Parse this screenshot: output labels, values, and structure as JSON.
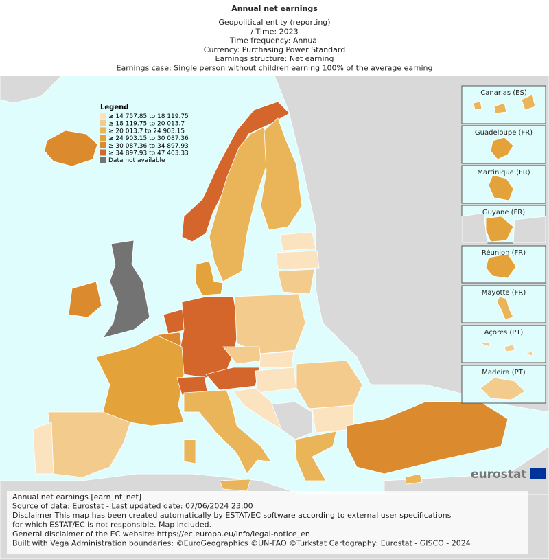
{
  "header": {
    "title": "Annual net earnings",
    "subtitle": [
      "Geopolitical entity (reporting)",
      "/ Time:  2023",
      "Time frequency:  Annual",
      "Currency:  Purchasing Power Standard",
      "Earnings structure:  Net earning",
      "Earnings case:  Single person without children earning 100% of the average earning"
    ]
  },
  "legend": {
    "title": "Legend",
    "items": [
      {
        "label": "≥ 14 757.85 to 18 119.75",
        "color": "#fce3c0"
      },
      {
        "label": "≥ 18 119.75 to 20 013.7",
        "color": "#f3cb8c"
      },
      {
        "label": "≥ 20 013.7 to 24 903.15",
        "color": "#eab458"
      },
      {
        "label": "≥ 24 903.15 to 30 087.36",
        "color": "#e4a23a"
      },
      {
        "label": "≥ 30 087.36 to 34 897.93",
        "color": "#dc8a2e"
      },
      {
        "label": "≥ 34 897.93 to 47 403.33",
        "color": "#d4662c"
      },
      {
        "label": "Data not available",
        "color": "#737373"
      }
    ]
  },
  "insets": [
    "Canarias (ES)",
    "Guadeloupe (FR)",
    "Martinique (FR)",
    "Guyane (FR)",
    "Réunion (FR)",
    "Mayotte (FR)",
    "Açores (PT)",
    "Madeira (PT)"
  ],
  "logo": "eurostat",
  "footer": [
    "Annual net earnings [earn_nt_net]",
    "Source of data: Eurostat - Last updated date: 07/06/2024 23:00",
    "Disclaimer This map has been created automatically by ESTAT/EC software according to external user specifications",
    "for which ESTAT/EC is not responsible. Map included.",
    "General disclaimer of the EC website: https://ec.europa.eu/info/legal-notice_en",
    "Built with Vega Administration boundaries: ©EuroGeographics ©UN-FAO ©Turkstat Cartography: Eurostat - GISCO - 2024"
  ]
}
